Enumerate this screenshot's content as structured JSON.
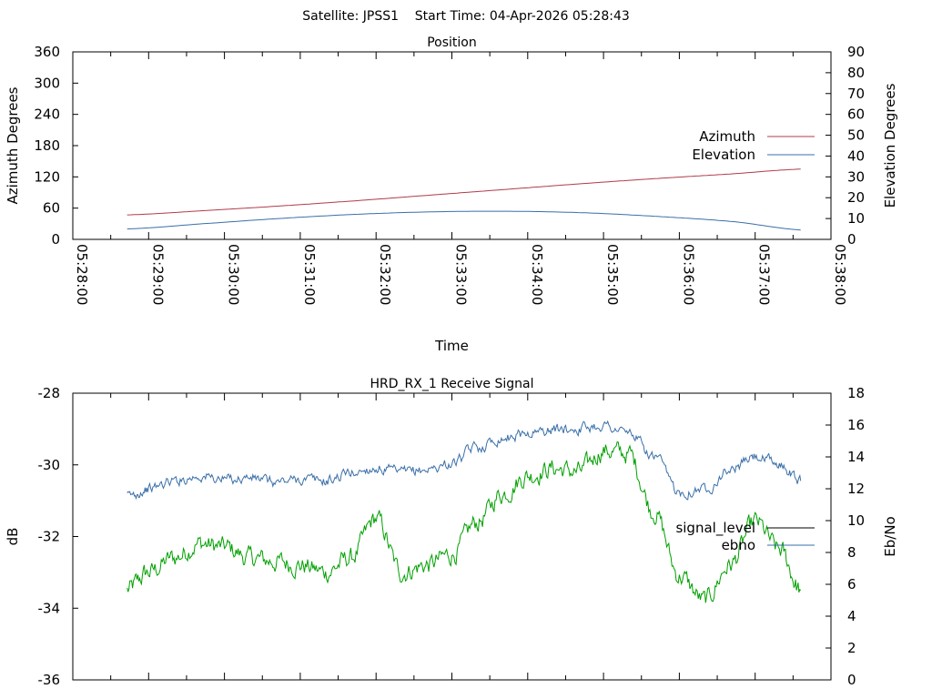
{
  "header": {
    "title": "Satellite: JPSS1    Start Time: 04-Apr-2026 05:28:43"
  },
  "colors": {
    "azimuth": "#b03b4a",
    "elevation": "#3a6fa8",
    "signal_level": "#000000",
    "ebno": "#3a6fa8",
    "signal_trace": "#00a000",
    "ebno_trace": "#3a6fa8"
  },
  "chart_data": [
    {
      "type": "line",
      "title": "Position",
      "xlabel": "Time",
      "ylabel": "Azimuth Degrees",
      "y2label": "Elevation Degrees",
      "xlim": [
        "05:28:00",
        "05:38:00"
      ],
      "x_ticks": [
        "05:28:00",
        "05:29:00",
        "05:30:00",
        "05:31:00",
        "05:32:00",
        "05:33:00",
        "05:34:00",
        "05:35:00",
        "05:36:00",
        "05:37:00",
        "05:38:00"
      ],
      "ylim": [
        0,
        360
      ],
      "y_ticks": [
        0,
        60,
        120,
        180,
        240,
        300,
        360
      ],
      "y2lim": [
        0,
        90
      ],
      "y2_ticks": [
        0,
        10,
        20,
        30,
        40,
        50,
        60,
        70,
        80,
        90
      ],
      "legend_position": "right",
      "grid": false,
      "series": [
        {
          "name": "Azimuth",
          "axis": "y",
          "x": [
            "05:28:43",
            "05:29:43",
            "05:30:43",
            "05:31:43",
            "05:32:43",
            "05:33:43",
            "05:34:43",
            "05:35:43",
            "05:36:43",
            "05:37:36"
          ],
          "values": [
            47,
            55,
            64,
            74,
            85,
            96,
            107,
            117,
            126,
            135
          ]
        },
        {
          "name": "Elevation",
          "axis": "y2",
          "x": [
            "05:28:43",
            "05:29:43",
            "05:30:43",
            "05:31:43",
            "05:32:43",
            "05:33:43",
            "05:34:43",
            "05:35:43",
            "05:36:43",
            "05:37:36"
          ],
          "values": [
            5,
            7.5,
            10,
            12,
            13.2,
            13.5,
            12.8,
            11,
            8.5,
            4.5
          ]
        }
      ]
    },
    {
      "type": "line",
      "title": "HRD_RX_1 Receive Signal",
      "ylabel": "dB",
      "y2label": "Eb/No",
      "xlim": [
        "05:28:00",
        "05:38:00"
      ],
      "ylim": [
        -36,
        -28
      ],
      "y_ticks": [
        -36,
        -34,
        -32,
        -30,
        -28
      ],
      "y2lim": [
        0,
        18
      ],
      "y2_ticks": [
        0,
        2,
        4,
        6,
        8,
        10,
        12,
        14,
        16,
        18
      ],
      "legend_position": "right",
      "grid": false,
      "series": [
        {
          "name": "signal_level",
          "axis": "y",
          "x": [
            "05:28:43",
            "05:29:00",
            "05:29:20",
            "05:29:40",
            "05:30:00",
            "05:30:20",
            "05:30:40",
            "05:31:00",
            "05:31:20",
            "05:31:40",
            "05:32:00",
            "05:32:20",
            "05:32:40",
            "05:33:00",
            "05:33:20",
            "05:33:40",
            "05:34:00",
            "05:34:20",
            "05:34:40",
            "05:35:00",
            "05:35:20",
            "05:35:40",
            "05:36:00",
            "05:36:20",
            "05:36:40",
            "05:37:00",
            "05:37:20",
            "05:37:36"
          ],
          "values": [
            -33.5,
            -33.0,
            -32.6,
            -32.2,
            -32.3,
            -32.6,
            -32.7,
            -32.8,
            -33.0,
            -32.6,
            -31.5,
            -33.0,
            -32.8,
            -32.5,
            -31.6,
            -30.8,
            -30.3,
            -30.1,
            -30.2,
            -29.6,
            -29.7,
            -31.3,
            -33.1,
            -33.8,
            -32.8,
            -31.6,
            -32.4,
            -33.5
          ]
        },
        {
          "name": "ebno",
          "axis": "y2",
          "x": [
            "05:28:43",
            "05:29:00",
            "05:29:20",
            "05:29:40",
            "05:30:00",
            "05:30:20",
            "05:30:40",
            "05:31:00",
            "05:31:20",
            "05:31:40",
            "05:32:00",
            "05:32:20",
            "05:32:40",
            "05:33:00",
            "05:33:20",
            "05:33:40",
            "05:34:00",
            "05:34:20",
            "05:34:40",
            "05:35:00",
            "05:35:20",
            "05:35:40",
            "05:36:00",
            "05:36:20",
            "05:36:40",
            "05:37:00",
            "05:37:20",
            "05:37:36"
          ],
          "values": [
            11.5,
            12.0,
            12.5,
            12.8,
            12.6,
            12.7,
            12.4,
            12.6,
            12.5,
            13.0,
            13.3,
            13.0,
            13.2,
            13.6,
            14.6,
            15.2,
            15.5,
            15.7,
            15.8,
            16.0,
            15.5,
            14.0,
            11.8,
            12.0,
            13.2,
            14.0,
            13.5,
            12.5
          ]
        }
      ]
    }
  ]
}
